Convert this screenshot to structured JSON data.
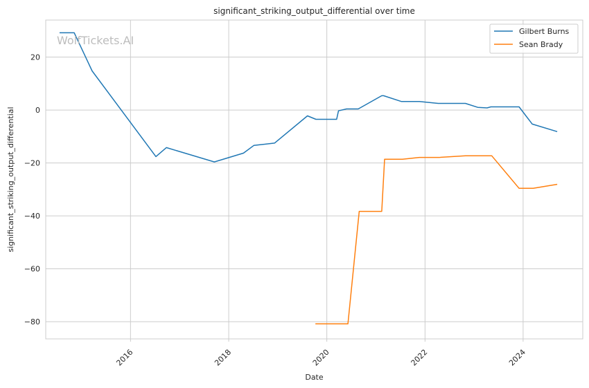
{
  "watermark": "WolfTickets.AI",
  "chart_data": {
    "type": "line",
    "title": "significant_striking_output_differential over time",
    "xlabel": "Date",
    "ylabel": "significant_striking_output_differential",
    "x_type": "date",
    "xlim": [
      "2014-04-10",
      "2025-03-20"
    ],
    "ylim": [
      -86.5,
      34
    ],
    "x_ticks": [
      {
        "date": "2016-01-01",
        "label": "2016"
      },
      {
        "date": "2018-01-01",
        "label": "2018"
      },
      {
        "date": "2020-01-01",
        "label": "2020"
      },
      {
        "date": "2022-01-01",
        "label": "2022"
      },
      {
        "date": "2024-01-01",
        "label": "2024"
      }
    ],
    "y_ticks": [
      {
        "value": 20,
        "label": "20"
      },
      {
        "value": 0,
        "label": "0"
      },
      {
        "value": -20,
        "label": "−20"
      },
      {
        "value": -40,
        "label": "−40"
      },
      {
        "value": -60,
        "label": "−60"
      },
      {
        "value": -80,
        "label": "−80"
      }
    ],
    "grid": true,
    "legend_position": "top-right",
    "series": [
      {
        "name": "Gilbert Burns",
        "color": "#1f77b4",
        "points": [
          {
            "x": "2014-07-26",
            "y": 29.2
          },
          {
            "x": "2014-11-08",
            "y": 29.2
          },
          {
            "x": "2015-03-21",
            "y": 14.8
          },
          {
            "x": "2016-07-08",
            "y": -17.6
          },
          {
            "x": "2016-09-24",
            "y": -14.2
          },
          {
            "x": "2017-09-16",
            "y": -19.6
          },
          {
            "x": "2018-04-21",
            "y": -16.3
          },
          {
            "x": "2018-07-07",
            "y": -13.4
          },
          {
            "x": "2018-12-08",
            "y": -12.5
          },
          {
            "x": "2019-08-10",
            "y": -2.2
          },
          {
            "x": "2019-10-12",
            "y": -3.5
          },
          {
            "x": "2020-03-14",
            "y": -3.5
          },
          {
            "x": "2020-03-28",
            "y": -0.3
          },
          {
            "x": "2020-05-27",
            "y": 0.4
          },
          {
            "x": "2020-08-22",
            "y": 0.4
          },
          {
            "x": "2021-02-13",
            "y": 5.4
          },
          {
            "x": "2021-02-27",
            "y": 5.4
          },
          {
            "x": "2021-07-10",
            "y": 3.2
          },
          {
            "x": "2021-11-20",
            "y": 3.2
          },
          {
            "x": "2022-04-09",
            "y": 2.5
          },
          {
            "x": "2022-10-29",
            "y": 2.5
          },
          {
            "x": "2023-01-28",
            "y": 1.0
          },
          {
            "x": "2023-04-08",
            "y": 0.8
          },
          {
            "x": "2023-05-06",
            "y": 1.2
          },
          {
            "x": "2023-12-02",
            "y": 1.2
          },
          {
            "x": "2024-03-09",
            "y": -5.3
          },
          {
            "x": "2024-09-07",
            "y": -8.1
          }
        ]
      },
      {
        "name": "Sean Brady",
        "color": "#ff7f0e",
        "points": [
          {
            "x": "2019-10-12",
            "y": -80.8
          },
          {
            "x": "2020-06-06",
            "y": -80.8
          },
          {
            "x": "2020-08-29",
            "y": -38.3
          },
          {
            "x": "2021-02-13",
            "y": -38.3
          },
          {
            "x": "2021-03-06",
            "y": -18.6
          },
          {
            "x": "2021-07-17",
            "y": -18.6
          },
          {
            "x": "2021-11-20",
            "y": -17.9
          },
          {
            "x": "2022-04-16",
            "y": -17.9
          },
          {
            "x": "2022-10-29",
            "y": -17.3
          },
          {
            "x": "2023-05-13",
            "y": -17.3
          },
          {
            "x": "2023-12-02",
            "y": -29.6
          },
          {
            "x": "2024-03-16",
            "y": -29.6
          },
          {
            "x": "2024-09-07",
            "y": -28.1
          }
        ]
      }
    ]
  }
}
